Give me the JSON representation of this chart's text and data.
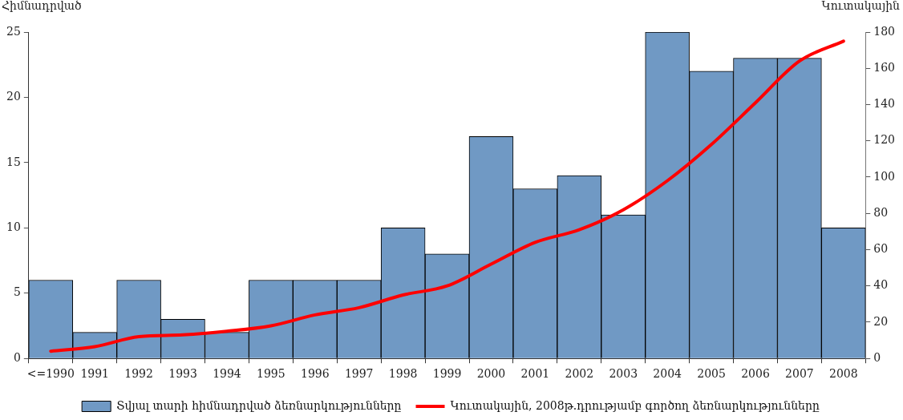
{
  "chart_data": {
    "type": "bar",
    "categories": [
      "<=1990",
      "1991",
      "1992",
      "1993",
      "1994",
      "1995",
      "1996",
      "1997",
      "1998",
      "1999",
      "2000",
      "2001",
      "2002",
      "2003",
      "2004",
      "2005",
      "2006",
      "2007",
      "2008"
    ],
    "series": [
      {
        "name": "Տվյալ տարի հիմնադրված ձեռնարկությունները",
        "color": "#7099c4",
        "values": [
          6,
          2,
          6,
          3,
          2,
          6,
          6,
          6,
          10,
          8,
          17,
          13,
          14,
          11,
          25,
          22,
          23,
          23,
          10
        ]
      },
      {
        "name": "Կուտակային, 2008թ.դրությամբ գործող ձեռնարկությունները",
        "type": "line",
        "axis": "y2",
        "color": "#ff0000",
        "values": [
          4,
          6.5,
          12,
          13,
          15,
          18,
          24,
          28,
          35,
          40,
          52,
          64,
          71,
          82,
          98,
          118,
          141,
          164,
          175
        ]
      }
    ],
    "ylabel": "Հիմնադրված",
    "y2label": "Կուտակային",
    "ylim": [
      0,
      25
    ],
    "yticks": [
      0,
      5,
      10,
      15,
      20,
      25
    ],
    "y2lim": [
      0,
      180
    ],
    "y2ticks": [
      0,
      20,
      40,
      60,
      80,
      100,
      120,
      140,
      160,
      180
    ],
    "grid": false,
    "legend": "bottom",
    "marker": "none",
    "line_style": "solid"
  }
}
